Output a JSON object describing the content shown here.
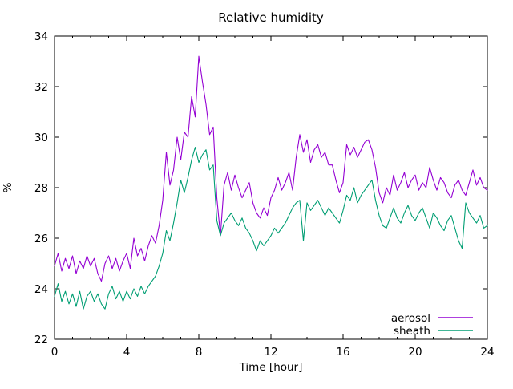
{
  "title": "Relative humidity",
  "axes": {
    "xlabel": "Time [hour]",
    "ylabel": "%",
    "x_ticks": [
      0,
      4,
      8,
      12,
      16,
      20,
      24
    ],
    "y_ticks": [
      22,
      24,
      26,
      28,
      30,
      32,
      34
    ],
    "x_minor_step": 1,
    "xlim": [
      0,
      24
    ],
    "ylim": [
      22,
      34
    ]
  },
  "legend": {
    "position": "inside-bottom-right",
    "entries": [
      {
        "label": "aerosol",
        "color": "#9400d3"
      },
      {
        "label": "sheath",
        "color": "#009e73"
      }
    ]
  },
  "colors": {
    "background": "#ffffff",
    "border": "#000000",
    "text": "#000000",
    "aerosol": "#9400d3",
    "sheath": "#009e73"
  },
  "chart_data": {
    "type": "line",
    "title": "Relative humidity",
    "xlabel": "Time [hour]",
    "ylabel": "%",
    "xlim": [
      0,
      24
    ],
    "ylim": [
      22,
      34
    ],
    "grid": false,
    "legend_position": "inside bottom-right",
    "x": [
      0,
      0.2,
      0.4,
      0.6,
      0.8,
      1,
      1.2,
      1.4,
      1.6,
      1.8,
      2,
      2.2,
      2.4,
      2.6,
      2.8,
      3,
      3.2,
      3.4,
      3.6,
      3.8,
      4,
      4.2,
      4.4,
      4.6,
      4.8,
      5,
      5.2,
      5.4,
      5.6,
      5.8,
      6,
      6.2,
      6.4,
      6.6,
      6.8,
      7,
      7.2,
      7.4,
      7.6,
      7.8,
      8,
      8.2,
      8.4,
      8.6,
      8.8,
      9,
      9.2,
      9.4,
      9.6,
      9.8,
      10,
      10.2,
      10.4,
      10.6,
      10.8,
      11,
      11.2,
      11.4,
      11.6,
      11.8,
      12,
      12.2,
      12.4,
      12.6,
      12.8,
      13,
      13.2,
      13.4,
      13.6,
      13.8,
      14,
      14.2,
      14.4,
      14.6,
      14.8,
      15,
      15.2,
      15.4,
      15.6,
      15.8,
      16,
      16.2,
      16.4,
      16.6,
      16.8,
      17,
      17.2,
      17.4,
      17.6,
      17.8,
      18,
      18.2,
      18.4,
      18.6,
      18.8,
      19,
      19.2,
      19.4,
      19.6,
      19.8,
      20,
      20.2,
      20.4,
      20.6,
      20.8,
      21,
      21.2,
      21.4,
      21.6,
      21.8,
      22,
      22.2,
      22.4,
      22.6,
      22.8,
      23,
      23.2,
      23.4,
      23.6,
      23.8,
      24
    ],
    "series": [
      {
        "name": "aerosol",
        "color": "#9400d3",
        "values": [
          24.9,
          25.4,
          24.7,
          25.2,
          24.8,
          25.3,
          24.6,
          25.1,
          24.8,
          25.3,
          24.9,
          25.2,
          24.6,
          24.3,
          25.0,
          25.3,
          24.8,
          25.2,
          24.7,
          25.1,
          25.4,
          24.8,
          26.0,
          25.3,
          25.6,
          25.1,
          25.7,
          26.1,
          25.8,
          26.5,
          27.5,
          29.4,
          28.1,
          28.7,
          30.0,
          29.1,
          30.2,
          30.0,
          31.6,
          30.8,
          33.2,
          32.2,
          31.3,
          30.1,
          30.4,
          27.6,
          26.1,
          28.1,
          28.6,
          27.9,
          28.5,
          28.0,
          27.6,
          27.9,
          28.2,
          27.4,
          27.0,
          26.8,
          27.2,
          26.9,
          27.6,
          27.9,
          28.4,
          27.9,
          28.2,
          28.6,
          27.9,
          29.2,
          30.1,
          29.4,
          29.9,
          29.0,
          29.5,
          29.7,
          29.2,
          29.4,
          28.9,
          28.9,
          28.3,
          27.8,
          28.2,
          29.7,
          29.3,
          29.6,
          29.2,
          29.5,
          29.8,
          29.9,
          29.5,
          28.8,
          27.8,
          27.4,
          28.0,
          27.7,
          28.5,
          27.9,
          28.2,
          28.6,
          28.0,
          28.3,
          28.5,
          27.9,
          28.2,
          28.0,
          28.8,
          28.3,
          27.9,
          28.4,
          28.2,
          27.8,
          27.6,
          28.1,
          28.3,
          27.9,
          27.7,
          28.2,
          28.7,
          28.1,
          28.4,
          28.0,
          27.9
        ]
      },
      {
        "name": "sheath",
        "color": "#009e73",
        "values": [
          23.7,
          24.2,
          23.5,
          23.9,
          23.4,
          23.8,
          23.3,
          23.9,
          23.2,
          23.7,
          23.9,
          23.5,
          23.8,
          23.4,
          23.2,
          23.8,
          24.1,
          23.6,
          23.9,
          23.5,
          23.9,
          23.6,
          24.0,
          23.7,
          24.1,
          23.8,
          24.1,
          24.3,
          24.5,
          24.9,
          25.4,
          26.3,
          25.9,
          26.6,
          27.4,
          28.3,
          27.8,
          28.4,
          29.1,
          29.6,
          29.0,
          29.3,
          29.5,
          28.7,
          28.9,
          26.7,
          26.1,
          26.6,
          26.8,
          27.0,
          26.7,
          26.5,
          26.8,
          26.4,
          26.2,
          25.9,
          25.5,
          25.9,
          25.7,
          25.9,
          26.1,
          26.4,
          26.2,
          26.4,
          26.6,
          26.9,
          27.2,
          27.4,
          27.5,
          25.9,
          27.4,
          27.1,
          27.3,
          27.5,
          27.2,
          26.9,
          27.2,
          27.0,
          26.8,
          26.6,
          27.1,
          27.7,
          27.5,
          28.0,
          27.4,
          27.7,
          27.9,
          28.1,
          28.3,
          27.5,
          26.9,
          26.5,
          26.4,
          26.8,
          27.2,
          26.8,
          26.6,
          27.0,
          27.3,
          26.9,
          26.7,
          27.0,
          27.2,
          26.8,
          26.4,
          27.0,
          26.8,
          26.5,
          26.3,
          26.7,
          26.9,
          26.4,
          25.9,
          25.6,
          27.4,
          27.0,
          26.8,
          26.6,
          26.9,
          26.4,
          26.5
        ]
      }
    ]
  }
}
